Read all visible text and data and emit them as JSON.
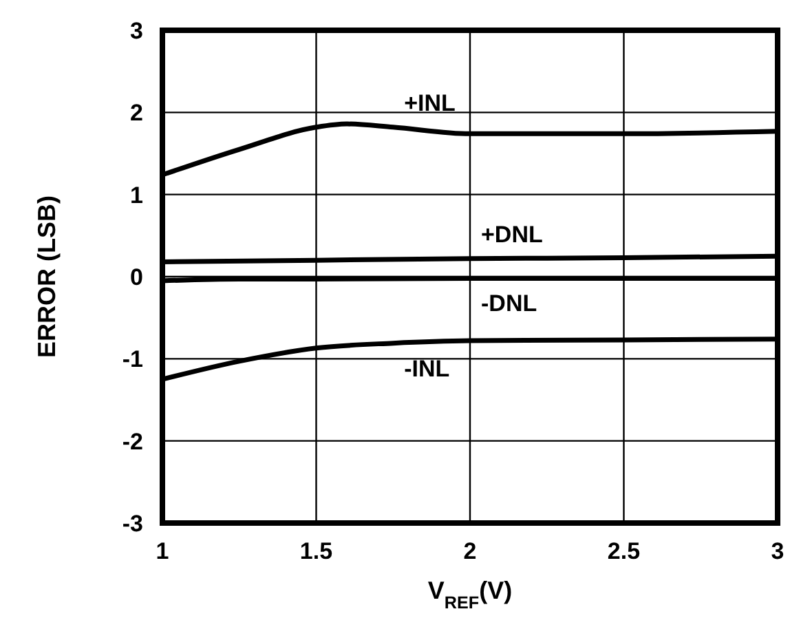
{
  "chart_data": {
    "type": "line",
    "xlabel": "V$_{REF}$(V)",
    "ylabel": "ERROR (LSB)",
    "xlim": [
      1,
      3
    ],
    "ylim": [
      -3,
      3
    ],
    "xticks": [
      1,
      1.5,
      2,
      2.5,
      3
    ],
    "yticks": [
      -3,
      -2,
      -1,
      0,
      1,
      2,
      3
    ],
    "grid": true,
    "line_style": "solid",
    "marker": "none",
    "series": [
      {
        "name": "+INL",
        "color": "#000000",
        "x": [
          1,
          1.25,
          1.5,
          1.6,
          1.75,
          2,
          2.5,
          3
        ],
        "values": [
          1.24,
          1.55,
          1.82,
          1.86,
          1.82,
          1.74,
          1.74,
          1.77
        ]
      },
      {
        "name": "+DNL",
        "color": "#000000",
        "x": [
          1,
          1.5,
          2,
          2.5,
          3
        ],
        "values": [
          0.18,
          0.2,
          0.22,
          0.23,
          0.25
        ]
      },
      {
        "name": "-DNL",
        "color": "#000000",
        "x": [
          1,
          1.25,
          1.5,
          2,
          2.5,
          3
        ],
        "values": [
          -0.05,
          -0.03,
          -0.03,
          -0.02,
          -0.02,
          -0.02
        ]
      },
      {
        "name": "-INL",
        "color": "#000000",
        "x": [
          1,
          1.25,
          1.5,
          1.75,
          2,
          2.5,
          3
        ],
        "values": [
          -1.25,
          -1.03,
          -0.87,
          -0.81,
          -0.78,
          -0.77,
          -0.76
        ]
      }
    ]
  }
}
